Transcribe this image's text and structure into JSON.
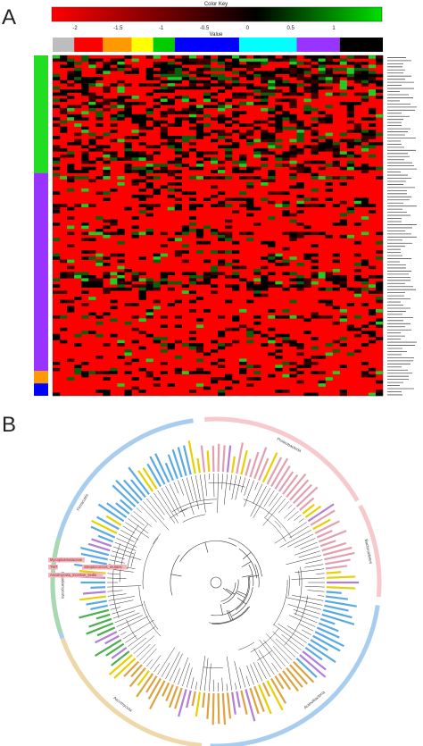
{
  "figure": {
    "panel_a_label": "A",
    "panel_b_label": "B",
    "color_key": {
      "title": "Color Key",
      "axis_label": "Value",
      "ticks": [
        "-2",
        "-1.5",
        "-1",
        "-0.5",
        "0",
        "0.5",
        "1"
      ],
      "low_color": "#ff0000",
      "mid_color": "#000000",
      "high_color": "#00e000"
    },
    "column_groups": [
      {
        "color": "#bdbdbd",
        "cols": 3
      },
      {
        "color": "#ff0000",
        "cols": 4
      },
      {
        "color": "#ff9900",
        "cols": 4
      },
      {
        "color": "#ffff00",
        "cols": 3
      },
      {
        "color": "#00cc00",
        "cols": 3
      },
      {
        "color": "#0000ff",
        "cols": 9
      },
      {
        "color": "#00ffff",
        "cols": 8
      },
      {
        "color": "#9933ff",
        "cols": 6
      },
      {
        "color": "#000000",
        "cols": 6
      }
    ],
    "row_groups": [
      {
        "color": "#22dd22",
        "rows": 38
      },
      {
        "color": "#9933ff",
        "rows": 64
      },
      {
        "color": "#ff9900",
        "rows": 4
      },
      {
        "color": "#0000ff",
        "rows": 4
      }
    ],
    "phyla": [
      {
        "name": "Firmicutes",
        "color": "#a8cdef"
      },
      {
        "name": "Proteobacteria",
        "color": "#f7c9cc"
      },
      {
        "name": "Bacteroidetes",
        "color": "#f7c9cc"
      },
      {
        "name": "Actinobacteria",
        "color": "#a8cdef"
      },
      {
        "name": "Ascomycota",
        "color": "#eed8aa"
      },
      {
        "name": "Basidiomycota",
        "color": "#a8d8b0"
      }
    ],
    "leaf_colors": [
      "#5aa9e0",
      "#e0a0b0",
      "#d9a441",
      "#4caf50",
      "#c8c8f0",
      "#e6d000",
      "#b07fd6"
    ],
    "highlight_labels": [
      {
        "text": "Mycoplasmataceae",
        "color": "#f2b8c0"
      },
      {
        "text": "TM7",
        "color": "#f2b8c0"
      },
      {
        "text": "Streptococcus_mutans",
        "color": "#f2b8c0"
      },
      {
        "text": "Ascomycota_incertae_sedis",
        "color": "#f2b8c0"
      }
    ]
  }
}
